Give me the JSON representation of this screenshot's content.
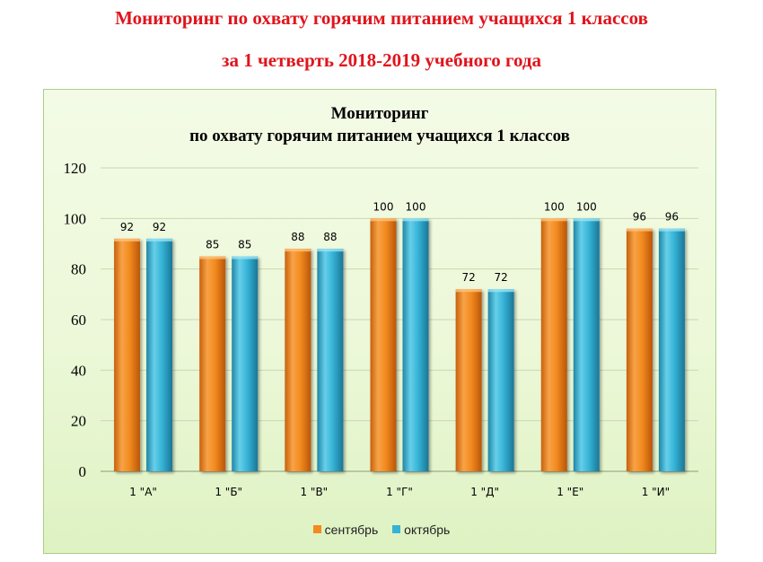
{
  "heading": {
    "line1": "Мониторинг по охвату горячим питанием учащихся 1 классов",
    "line2": "за 1 четверть 2018-2019 учебного года"
  },
  "chart_data": {
    "type": "bar",
    "title_line1": "Мониторинг",
    "title_line2": "по охвату горячим питанием учащихся 1 классов",
    "categories": [
      "1 \"А\"",
      "1 \"Б\"",
      "1 \"В\"",
      "1 \"Г\"",
      "1 \"Д\"",
      "1 \"Е\"",
      "1 \"И\""
    ],
    "series": [
      {
        "name": "сентябрь",
        "values": [
          92,
          85,
          88,
          100,
          72,
          100,
          96
        ],
        "color": "#f28a1e"
      },
      {
        "name": "октябрь",
        "values": [
          92,
          85,
          88,
          100,
          72,
          100,
          96
        ],
        "color": "#35b3d6"
      }
    ],
    "ylim": [
      0,
      120
    ],
    "yticks": [
      0,
      20,
      40,
      60,
      80,
      100,
      120
    ],
    "grid": true,
    "legend_position": "bottom"
  }
}
